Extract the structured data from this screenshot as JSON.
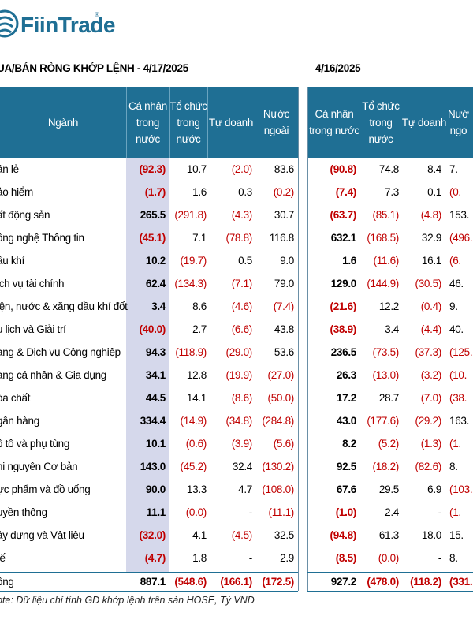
{
  "brand": {
    "name": "FiinTrade",
    "reg_mark": "®",
    "color": "#1f6f94"
  },
  "titles": {
    "left": "UA/BÁN RÒNG KHỚP LỆNH - 4/17/2025",
    "right": "4/16/2025"
  },
  "headers": {
    "sector": "Ngành",
    "individual": "Cá nhân\ntrong\nnước",
    "institution": "Tổ chức\ntrong\nnước",
    "proprietary": "Tự doanh",
    "foreign": "Nước\nngoài",
    "individual_r": "Cá nhân\ntrong nước",
    "institution_r": "Tổ chức\ntrong\nnước",
    "proprietary_r": "Tự doanh",
    "foreign_r": "Nướ\nngo"
  },
  "rows": [
    {
      "name": "án lẻ",
      "l": [
        "(92.3)",
        "10.7",
        "(2.0)",
        "83.6"
      ],
      "r": [
        "(90.8)",
        "74.8",
        "8.4",
        "7."
      ]
    },
    {
      "name": "ảo hiểm",
      "l": [
        "(1.7)",
        "1.6",
        "0.3",
        "(0.2)"
      ],
      "r": [
        "(7.4)",
        "7.3",
        "0.1",
        "(0."
      ]
    },
    {
      "name": "ất động sản",
      "l": [
        "265.5",
        "(291.8)",
        "(4.3)",
        "30.7"
      ],
      "r": [
        "(63.7)",
        "(85.1)",
        "(4.8)",
        "153."
      ]
    },
    {
      "name": "ông nghệ Thông tin",
      "l": [
        "(45.1)",
        "7.1",
        "(78.8)",
        "116.8"
      ],
      "r": [
        "632.1",
        "(168.5)",
        "32.9",
        "(496."
      ]
    },
    {
      "name": "ầu khí",
      "l": [
        "10.2",
        "(19.7)",
        "0.5",
        "9.0"
      ],
      "r": [
        "1.6",
        "(11.6)",
        "16.1",
        "(6."
      ]
    },
    {
      "name": "ịch vụ tài chính",
      "l": [
        "62.4",
        "(134.3)",
        "(7.1)",
        "79.0"
      ],
      "r": [
        "129.0",
        "(144.9)",
        "(30.5)",
        "46."
      ]
    },
    {
      "name": "iện, nước & xăng dầu khí đốt",
      "l": [
        "3.4",
        "8.6",
        "(4.6)",
        "(7.4)"
      ],
      "r": [
        "(21.6)",
        "12.2",
        "(0.4)",
        "9."
      ]
    },
    {
      "name": "u lịch và Giải trí",
      "l": [
        "(40.0)",
        "2.7",
        "(6.6)",
        "43.8"
      ],
      "r": [
        "(38.9)",
        "3.4",
        "(4.4)",
        "40."
      ]
    },
    {
      "name": "àng & Dịch vụ Công nghiệp",
      "l": [
        "94.3",
        "(118.9)",
        "(29.0)",
        "53.6"
      ],
      "r": [
        "236.5",
        "(73.5)",
        "(37.3)",
        "(125."
      ]
    },
    {
      "name": "àng cá nhân & Gia dụng",
      "l": [
        "34.1",
        "12.8",
        "(19.9)",
        "(27.0)"
      ],
      "r": [
        "26.3",
        "(13.0)",
        "(3.2)",
        "(10."
      ]
    },
    {
      "name": "óa chất",
      "l": [
        "44.5",
        "14.1",
        "(8.6)",
        "(50.0)"
      ],
      "r": [
        "17.2",
        "28.7",
        "(7.0)",
        "(38."
      ]
    },
    {
      "name": "gân hàng",
      "l": [
        "334.4",
        "(14.9)",
        "(34.8)",
        "(284.8)"
      ],
      "r": [
        "43.0",
        "(177.6)",
        "(29.2)",
        "163."
      ]
    },
    {
      "name": "ô tô và phụ tùng",
      "l": [
        "10.1",
        "(0.6)",
        "(3.9)",
        "(5.6)"
      ],
      "r": [
        "8.2",
        "(5.2)",
        "(1.3)",
        "(1."
      ]
    },
    {
      "name": "hi nguyên Cơ bản",
      "l": [
        "143.0",
        "(45.2)",
        "32.4",
        "(130.2)"
      ],
      "r": [
        "92.5",
        "(18.2)",
        "(82.6)",
        "8."
      ]
    },
    {
      "name": "ực phẩm và đồ uống",
      "l": [
        "90.0",
        "13.3",
        "4.7",
        "(108.0)"
      ],
      "r": [
        "67.6",
        "29.5",
        "6.9",
        "(103."
      ]
    },
    {
      "name": "uyền thông",
      "l": [
        "11.1",
        "(0.0)",
        "-",
        "(11.1)"
      ],
      "r": [
        "(1.0)",
        "2.4",
        "-",
        "(1."
      ]
    },
    {
      "name": "ây dựng và Vật liệu",
      "l": [
        "(32.0)",
        "4.1",
        "(4.5)",
        "32.5"
      ],
      "r": [
        "(94.8)",
        "61.3",
        "18.0",
        "15."
      ]
    },
    {
      "name": "tế",
      "l": [
        "(4.7)",
        "1.8",
        "-",
        "2.9"
      ],
      "r": [
        "(8.5)",
        "(0.0)",
        "-",
        "8."
      ]
    }
  ],
  "total": {
    "name": "ông",
    "l": [
      "887.1",
      "(548.6)",
      "(166.1)",
      "(172.5)"
    ],
    "r": [
      "927.2",
      "(478.0)",
      "(118.2)",
      "(331."
    ]
  },
  "note": "ote: Dữ liệu chỉ tính GD khớp lệnh trên sàn HOSE, Tỷ VND",
  "colors": {
    "header_bg": "#1f6f94",
    "negative": "#c00000",
    "highlight": "#d5d8eb"
  }
}
